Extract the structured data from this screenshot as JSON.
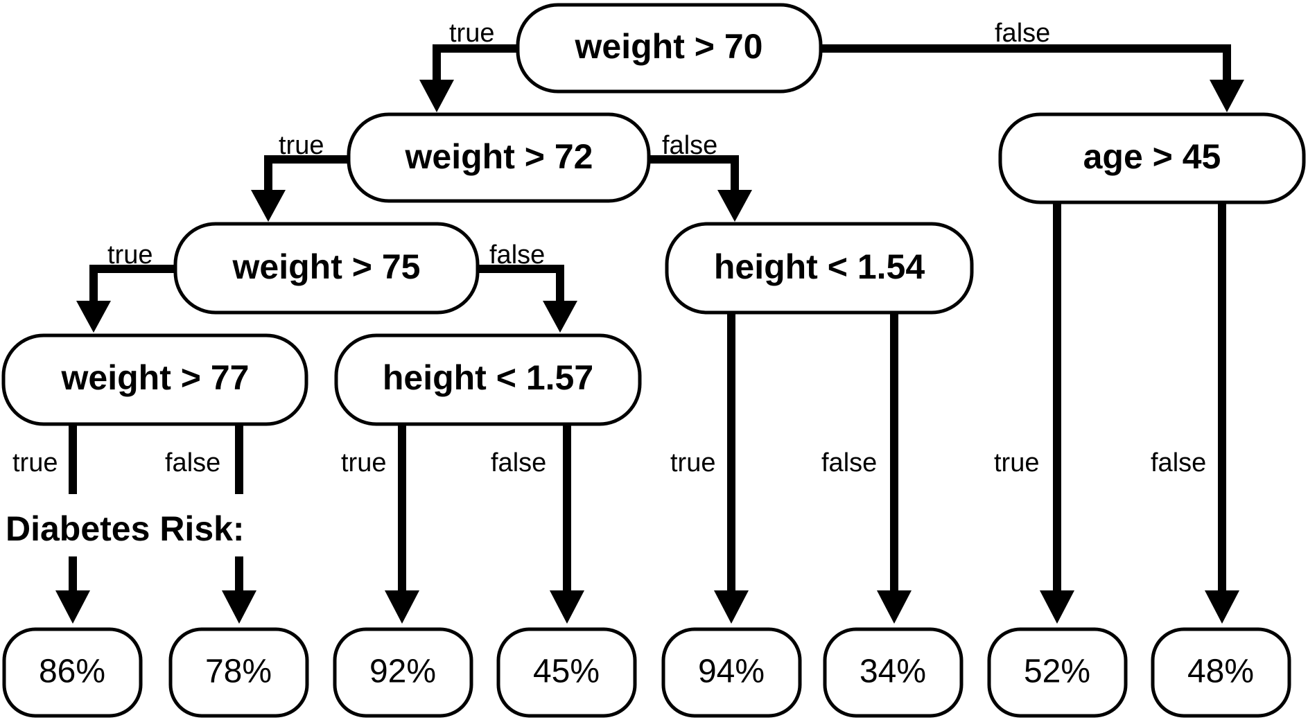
{
  "caption": "Diabetes Risk:",
  "nodes": {
    "root": "weight > 70",
    "w72": "weight > 72",
    "age45": "age > 45",
    "w75": "weight > 75",
    "h154": "height < 1.54",
    "w77": "weight > 77",
    "h157": "height < 1.57"
  },
  "leaves": [
    "86%",
    "78%",
    "92%",
    "45%",
    "94%",
    "34%",
    "52%",
    "48%"
  ],
  "edges": {
    "true": "true",
    "false": "false"
  },
  "colors": {
    "line": "#000000",
    "background": "#ffffff"
  }
}
